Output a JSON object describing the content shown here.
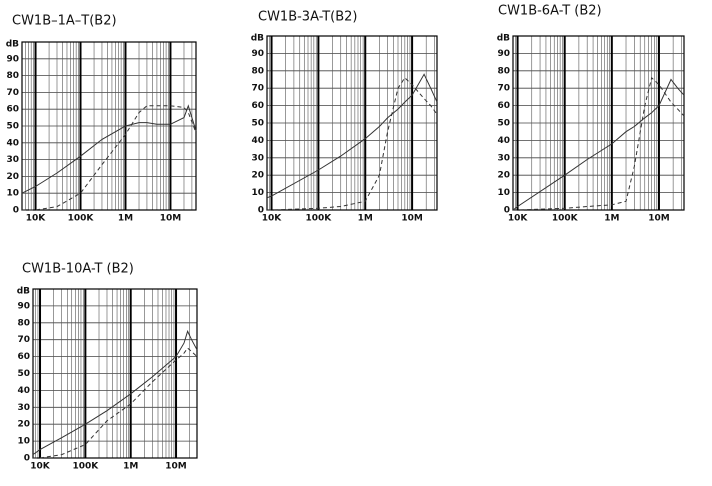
{
  "chart_data": [
    {
      "type": "line",
      "title": "CW1B–1A–T(B2)",
      "ylabel": "dB",
      "xscale": "log",
      "grid": true,
      "xlim": [
        5000,
        37000000
      ],
      "ylim": [
        0,
        100
      ],
      "xticks": [
        {
          "value": 10000,
          "label": "10K"
        },
        {
          "value": 100000,
          "label": "100K"
        },
        {
          "value": 1000000,
          "label": "1M"
        },
        {
          "value": 10000000,
          "label": "10M"
        }
      ],
      "yticks": [
        0,
        10,
        20,
        30,
        40,
        50,
        60,
        70,
        80,
        90
      ],
      "x": [
        5000,
        10000,
        30000,
        100000,
        300000,
        1000000,
        2000000,
        3000000,
        5000000,
        10000000,
        20000000,
        25000000,
        37000000
      ],
      "series": [
        {
          "color": "#333333",
          "style": "solid",
          "values": [
            10,
            14,
            22,
            32,
            42,
            50,
            52,
            52,
            51,
            51,
            55,
            62,
            47
          ]
        },
        {
          "color": "#333333",
          "style": "dashed",
          "values": [
            0,
            0,
            2,
            10,
            27,
            45,
            58,
            62,
            62,
            62,
            61,
            58,
            46
          ]
        }
      ]
    },
    {
      "type": "line",
      "title": "CW1B-3A-T(B2)",
      "ylabel": "dB",
      "xscale": "log",
      "grid": true,
      "xlim": [
        8000,
        34000000
      ],
      "ylim": [
        0,
        100
      ],
      "xticks": [
        {
          "value": 10000,
          "label": "10K"
        },
        {
          "value": 100000,
          "label": "100K"
        },
        {
          "value": 1000000,
          "label": "1M"
        },
        {
          "value": 10000000,
          "label": "10M"
        }
      ],
      "yticks": [
        0,
        10,
        20,
        30,
        40,
        50,
        60,
        70,
        80,
        90
      ],
      "x": [
        8000,
        10000,
        100000,
        300000,
        1000000,
        2000000,
        3000000,
        5000000,
        7000000,
        10000000,
        18000000,
        25000000,
        34000000
      ],
      "series": [
        {
          "color": "#333333",
          "style": "solid",
          "values": [
            7,
            8,
            23,
            31,
            41,
            48,
            53,
            58,
            62,
            66,
            78,
            70,
            62
          ]
        },
        {
          "color": "#333333",
          "style": "dashed",
          "values": [
            0,
            0,
            1,
            2,
            5,
            20,
            45,
            70,
            76,
            72,
            64,
            60,
            55
          ]
        }
      ]
    },
    {
      "type": "line",
      "title": "CW1B-6A-T (B2)",
      "ylabel": "dB",
      "xscale": "log",
      "grid": true,
      "xlim": [
        8000,
        34000000
      ],
      "ylim": [
        0,
        100
      ],
      "xticks": [
        {
          "value": 10000,
          "label": "10K"
        },
        {
          "value": 100000,
          "label": "100K"
        },
        {
          "value": 1000000,
          "label": "1M"
        },
        {
          "value": 10000000,
          "label": "10M"
        }
      ],
      "yticks": [
        0,
        10,
        20,
        30,
        40,
        50,
        60,
        70,
        80,
        90
      ],
      "x": [
        8000,
        10000,
        100000,
        300000,
        1000000,
        2000000,
        3000000,
        5000000,
        7000000,
        10000000,
        18000000,
        25000000,
        34000000
      ],
      "series": [
        {
          "color": "#333333",
          "style": "solid",
          "values": [
            0,
            2,
            20,
            29,
            38,
            45,
            48,
            53,
            56,
            60,
            75,
            70,
            66
          ]
        },
        {
          "color": "#333333",
          "style": "dashed",
          "values": [
            0,
            0,
            1,
            2,
            3,
            5,
            25,
            60,
            76,
            72,
            62,
            58,
            54
          ]
        }
      ]
    },
    {
      "type": "line",
      "title": "CW1B-10A-T (B2)",
      "ylabel": "dB",
      "xscale": "log",
      "grid": true,
      "xlim": [
        7000,
        29000000
      ],
      "ylim": [
        0,
        100
      ],
      "xticks": [
        {
          "value": 10000,
          "label": "10K"
        },
        {
          "value": 100000,
          "label": "100K"
        },
        {
          "value": 1000000,
          "label": "1M"
        },
        {
          "value": 10000000,
          "label": "10M"
        }
      ],
      "yticks": [
        0,
        10,
        20,
        30,
        40,
        50,
        60,
        70,
        80,
        90
      ],
      "x": [
        7000,
        10000,
        30000,
        100000,
        300000,
        1000000,
        3000000,
        10000000,
        15000000,
        18000000,
        22000000,
        29000000
      ],
      "series": [
        {
          "color": "#333333",
          "style": "solid",
          "values": [
            2,
            5,
            12,
            20,
            28,
            38,
            48,
            60,
            68,
            75,
            70,
            64
          ]
        },
        {
          "color": "#333333",
          "style": "dashed",
          "values": [
            0,
            0,
            2,
            8,
            22,
            32,
            45,
            58,
            62,
            65,
            63,
            60
          ]
        }
      ]
    }
  ]
}
